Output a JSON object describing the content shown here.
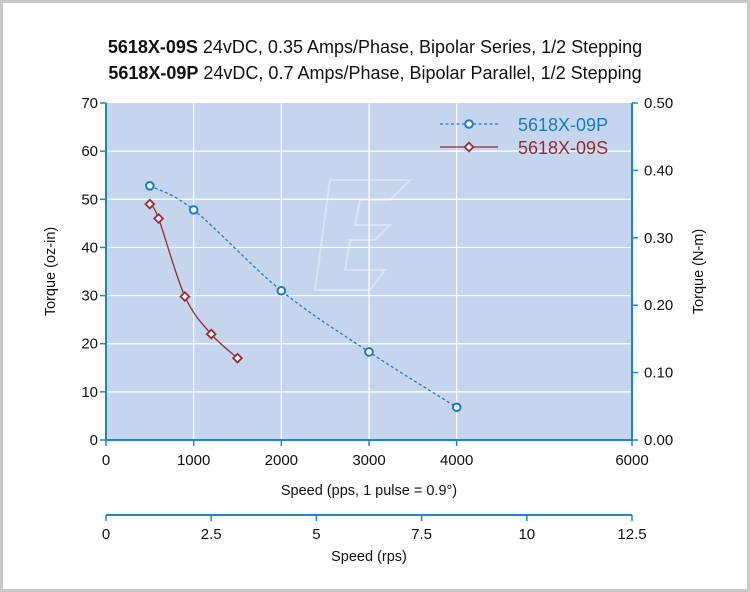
{
  "titles": [
    {
      "model": "5618X-09S",
      "spec": " 24vDC, 0.35 Amps/Phase, Bipolar Series, 1/2 Stepping"
    },
    {
      "model": "5618X-09P",
      "spec": " 24vDC, 0.7 Amps/Phase, Bipolar Parallel, 1/2 Stepping"
    }
  ],
  "colors": {
    "plot_bg": "#c5d5ee",
    "grid": "#ffffff",
    "axis": "#1a87c8",
    "series_p": "#1b7bbf",
    "series_s": "#9b2a2a"
  },
  "chart_data": {
    "type": "line",
    "xlabel": "Speed (pps, 1 pulse = 0.9°)",
    "ylabel": "Torque (oz-in)",
    "y2label": "Torque (N-m)",
    "x2label": "Speed (rps)",
    "xlim": [
      0,
      6000
    ],
    "ylim": [
      0,
      70
    ],
    "y2lim": [
      0,
      0.5
    ],
    "x2lim": [
      0,
      12.5
    ],
    "x_ticks": [
      "0",
      "1000",
      "2000",
      "3000",
      "4000",
      "6000"
    ],
    "x_tick_values": [
      0,
      1000,
      2000,
      3000,
      4000,
      6000
    ],
    "y_ticks": [
      "0",
      "10",
      "20",
      "30",
      "40",
      "50",
      "60",
      "70"
    ],
    "y_tick_values": [
      0,
      10,
      20,
      30,
      40,
      50,
      60,
      70
    ],
    "y2_ticks": [
      "0.00",
      "0.10",
      "0.20",
      "0.30",
      "0.40",
      "0.50"
    ],
    "y2_tick_values": [
      0,
      0.1,
      0.2,
      0.3,
      0.4,
      0.5
    ],
    "x2_ticks": [
      "0",
      "2.5",
      "5",
      "7.5",
      "10",
      "12.5"
    ],
    "x2_tick_values": [
      0,
      2.5,
      5,
      7.5,
      10,
      12.5
    ],
    "grid": true,
    "legend_position": "top-right",
    "series": [
      {
        "name": "5618X-09P",
        "style": "dashed",
        "marker": "circle",
        "x": [
          500,
          1000,
          2000,
          3000,
          4000
        ],
        "y": [
          52.8,
          47.8,
          31.0,
          18.3,
          6.8
        ]
      },
      {
        "name": "5618X-09S",
        "style": "solid",
        "marker": "diamond",
        "x": [
          500,
          600,
          900,
          1200,
          1500
        ],
        "y": [
          49.0,
          46.0,
          29.8,
          22.0,
          17.0
        ]
      }
    ]
  }
}
